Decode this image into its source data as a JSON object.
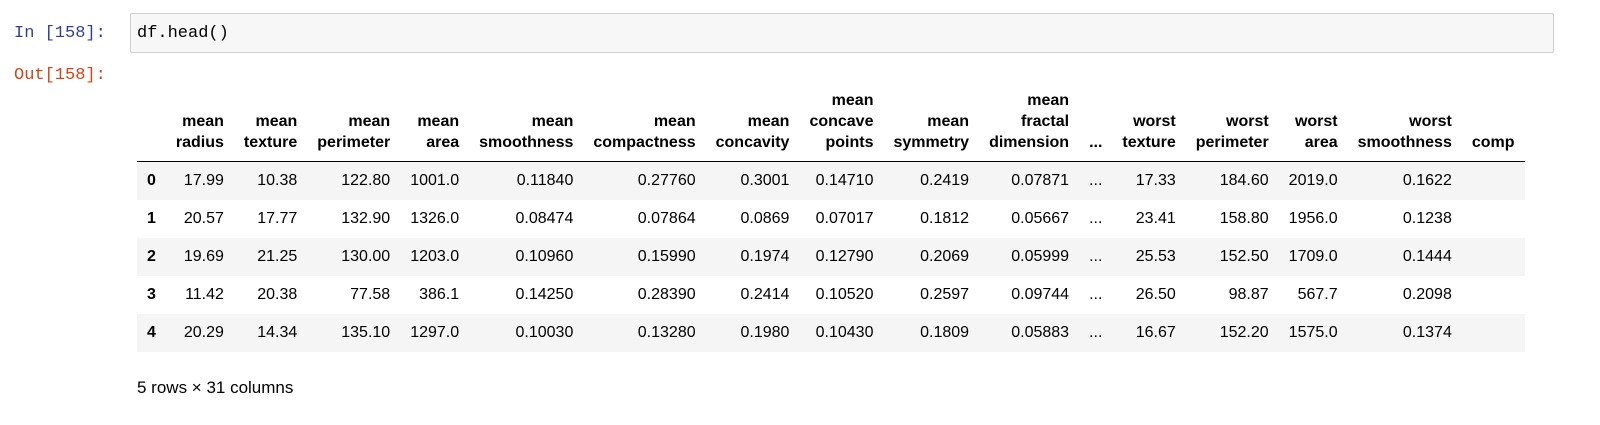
{
  "input": {
    "prompt": "In [158]:",
    "code": "df.head()"
  },
  "output": {
    "prompt": "Out[158]:",
    "table": {
      "columns": [
        "mean radius",
        "mean texture",
        "mean perimeter",
        "mean area",
        "mean smoothness",
        "mean compactness",
        "mean concavity",
        "mean concave points",
        "mean symmetry",
        "mean fractal dimension",
        "...",
        "worst texture",
        "worst perimeter",
        "worst area",
        "worst smoothness",
        "comp"
      ],
      "rows": [
        {
          "index": "0",
          "cells": [
            "17.99",
            "10.38",
            "122.80",
            "1001.0",
            "0.11840",
            "0.27760",
            "0.3001",
            "0.14710",
            "0.2419",
            "0.07871",
            "...",
            "17.33",
            "184.60",
            "2019.0",
            "0.1622"
          ]
        },
        {
          "index": "1",
          "cells": [
            "20.57",
            "17.77",
            "132.90",
            "1326.0",
            "0.08474",
            "0.07864",
            "0.0869",
            "0.07017",
            "0.1812",
            "0.05667",
            "...",
            "23.41",
            "158.80",
            "1956.0",
            "0.1238"
          ]
        },
        {
          "index": "2",
          "cells": [
            "19.69",
            "21.25",
            "130.00",
            "1203.0",
            "0.10960",
            "0.15990",
            "0.1974",
            "0.12790",
            "0.2069",
            "0.05999",
            "...",
            "25.53",
            "152.50",
            "1709.0",
            "0.1444"
          ]
        },
        {
          "index": "3",
          "cells": [
            "11.42",
            "20.38",
            "77.58",
            "386.1",
            "0.14250",
            "0.28390",
            "0.2414",
            "0.10520",
            "0.2597",
            "0.09744",
            "...",
            "26.50",
            "98.87",
            "567.7",
            "0.2098"
          ]
        },
        {
          "index": "4",
          "cells": [
            "20.29",
            "14.34",
            "135.10",
            "1297.0",
            "0.10030",
            "0.13280",
            "0.1980",
            "0.10430",
            "0.1809",
            "0.05883",
            "...",
            "16.67",
            "152.20",
            "1575.0",
            "0.1374"
          ]
        }
      ]
    },
    "footer": "5 rows × 31 columns"
  }
}
